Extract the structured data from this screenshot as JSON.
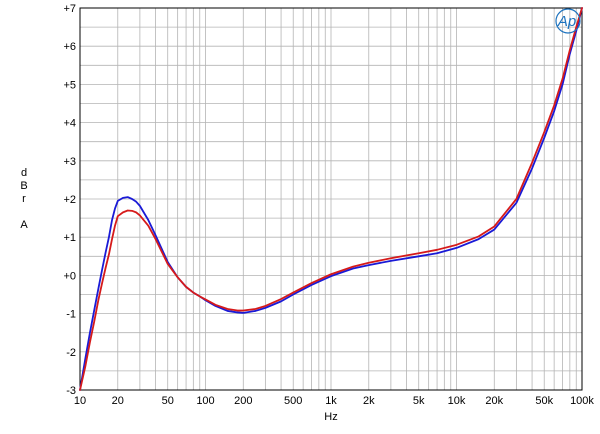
{
  "chart_data": {
    "type": "line",
    "xscale": "log",
    "xlim": [
      10,
      100000
    ],
    "ylim": [
      -3,
      7
    ],
    "xlabel": "Hz",
    "ylabel_lines": [
      "d",
      "B",
      "r",
      "",
      "A"
    ],
    "xticks": [
      {
        "value": 10,
        "label": "10"
      },
      {
        "value": 20,
        "label": "20"
      },
      {
        "value": 50,
        "label": "50"
      },
      {
        "value": 100,
        "label": "100"
      },
      {
        "value": 200,
        "label": "200"
      },
      {
        "value": 500,
        "label": "500"
      },
      {
        "value": 1000,
        "label": "1k"
      },
      {
        "value": 2000,
        "label": "2k"
      },
      {
        "value": 5000,
        "label": "5k"
      },
      {
        "value": 10000,
        "label": "10k"
      },
      {
        "value": 20000,
        "label": "20k"
      },
      {
        "value": 50000,
        "label": "50k"
      },
      {
        "value": 100000,
        "label": "100k"
      }
    ],
    "yticks": [
      {
        "value": 7,
        "label": "+7"
      },
      {
        "value": 6,
        "label": "+6"
      },
      {
        "value": 5,
        "label": "+5"
      },
      {
        "value": 4,
        "label": "+4"
      },
      {
        "value": 3,
        "label": "+3"
      },
      {
        "value": 2,
        "label": "+2"
      },
      {
        "value": 1,
        "label": "+1"
      },
      {
        "value": 0,
        "label": "+0"
      },
      {
        "value": -1,
        "label": "-1"
      },
      {
        "value": -2,
        "label": "-2"
      },
      {
        "value": -3,
        "label": "-3"
      }
    ],
    "grid": true,
    "logo": "Ap",
    "series": [
      {
        "color": "#1a1ad6",
        "points": [
          [
            10,
            -3.0
          ],
          [
            11,
            -2.2
          ],
          [
            12,
            -1.5
          ],
          [
            13,
            -0.9
          ],
          [
            14,
            -0.35
          ],
          [
            15,
            0.15
          ],
          [
            16,
            0.6
          ],
          [
            17,
            1.0
          ],
          [
            18,
            1.45
          ],
          [
            19,
            1.75
          ],
          [
            20,
            1.95
          ],
          [
            22,
            2.03
          ],
          [
            24,
            2.05
          ],
          [
            26,
            2.0
          ],
          [
            28,
            1.93
          ],
          [
            30,
            1.82
          ],
          [
            35,
            1.45
          ],
          [
            40,
            1.05
          ],
          [
            50,
            0.35
          ],
          [
            60,
            -0.05
          ],
          [
            70,
            -0.3
          ],
          [
            80,
            -0.45
          ],
          [
            90,
            -0.55
          ],
          [
            100,
            -0.65
          ],
          [
            120,
            -0.8
          ],
          [
            150,
            -0.93
          ],
          [
            180,
            -0.97
          ],
          [
            200,
            -0.98
          ],
          [
            250,
            -0.93
          ],
          [
            300,
            -0.85
          ],
          [
            400,
            -0.68
          ],
          [
            500,
            -0.5
          ],
          [
            700,
            -0.25
          ],
          [
            1000,
            -0.02
          ],
          [
            1500,
            0.18
          ],
          [
            2000,
            0.27
          ],
          [
            3000,
            0.38
          ],
          [
            5000,
            0.5
          ],
          [
            7000,
            0.58
          ],
          [
            10000,
            0.72
          ],
          [
            15000,
            0.95
          ],
          [
            20000,
            1.2
          ],
          [
            30000,
            1.9
          ],
          [
            40000,
            2.8
          ],
          [
            50000,
            3.6
          ],
          [
            60000,
            4.3
          ],
          [
            70000,
            5.0
          ],
          [
            80000,
            5.8
          ],
          [
            90000,
            6.4
          ],
          [
            100000,
            7.0
          ]
        ]
      },
      {
        "color": "#d61a1a",
        "points": [
          [
            10,
            -3.0
          ],
          [
            11,
            -2.4
          ],
          [
            12,
            -1.75
          ],
          [
            13,
            -1.2
          ],
          [
            14,
            -0.65
          ],
          [
            15,
            -0.2
          ],
          [
            16,
            0.2
          ],
          [
            17,
            0.55
          ],
          [
            18,
            0.95
          ],
          [
            19,
            1.3
          ],
          [
            20,
            1.55
          ],
          [
            22,
            1.65
          ],
          [
            24,
            1.7
          ],
          [
            26,
            1.69
          ],
          [
            28,
            1.65
          ],
          [
            30,
            1.57
          ],
          [
            35,
            1.3
          ],
          [
            40,
            0.95
          ],
          [
            50,
            0.3
          ],
          [
            60,
            -0.05
          ],
          [
            70,
            -0.3
          ],
          [
            80,
            -0.45
          ],
          [
            90,
            -0.55
          ],
          [
            100,
            -0.63
          ],
          [
            120,
            -0.77
          ],
          [
            150,
            -0.88
          ],
          [
            180,
            -0.92
          ],
          [
            200,
            -0.92
          ],
          [
            250,
            -0.88
          ],
          [
            300,
            -0.8
          ],
          [
            400,
            -0.62
          ],
          [
            500,
            -0.45
          ],
          [
            700,
            -0.2
          ],
          [
            1000,
            0.03
          ],
          [
            1500,
            0.23
          ],
          [
            2000,
            0.33
          ],
          [
            3000,
            0.45
          ],
          [
            5000,
            0.58
          ],
          [
            7000,
            0.67
          ],
          [
            10000,
            0.8
          ],
          [
            15000,
            1.02
          ],
          [
            20000,
            1.28
          ],
          [
            30000,
            2.0
          ],
          [
            40000,
            2.95
          ],
          [
            50000,
            3.75
          ],
          [
            60000,
            4.45
          ],
          [
            70000,
            5.15
          ],
          [
            80000,
            5.9
          ],
          [
            90000,
            6.5
          ],
          [
            100000,
            7.0
          ]
        ]
      }
    ]
  }
}
